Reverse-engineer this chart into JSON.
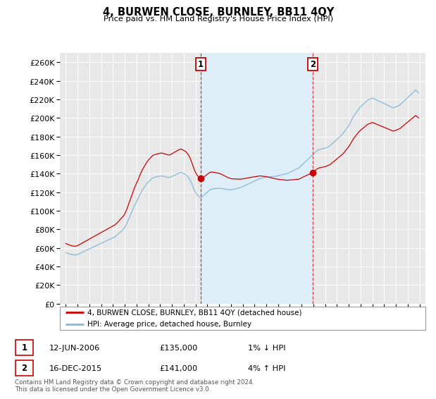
{
  "title": "4, BURWEN CLOSE, BURNLEY, BB11 4QY",
  "subtitle": "Price paid vs. HM Land Registry's House Price Index (HPI)",
  "hpi_color": "#85b9d9",
  "property_color": "#cc0000",
  "vline_color": "#cc0000",
  "shade_color": "#ddeef8",
  "background_color": "#e8e8e8",
  "grid_color": "#ffffff",
  "legend_border_color": "#aaaaaa",
  "transaction1": {
    "date_label": "12-JUN-2006",
    "price": 135000,
    "pct": "1%",
    "dir": "↓",
    "year": 2006.44
  },
  "transaction2": {
    "date_label": "16-DEC-2015",
    "price": 141000,
    "pct": "4%",
    "dir": "↑",
    "year": 2015.95
  },
  "footnote": "Contains HM Land Registry data © Crown copyright and database right 2024.\nThis data is licensed under the Open Government Licence v3.0.",
  "hpi_monthly": [
    55000,
    54500,
    54200,
    53800,
    53500,
    53200,
    53000,
    52800,
    52600,
    52400,
    52500,
    52700,
    53000,
    53500,
    54000,
    54500,
    55000,
    55500,
    56000,
    56500,
    57000,
    57500,
    58000,
    58500,
    59000,
    59500,
    60000,
    60500,
    61000,
    61500,
    62000,
    62500,
    63000,
    63500,
    64000,
    64500,
    65000,
    65500,
    66000,
    66500,
    67000,
    67500,
    68000,
    68500,
    69000,
    69500,
    70000,
    70500,
    71000,
    71500,
    72000,
    72800,
    73600,
    74500,
    75500,
    76500,
    77500,
    78500,
    79500,
    80500,
    82000,
    84000,
    86000,
    88500,
    91000,
    93500,
    96000,
    98500,
    101000,
    103500,
    106000,
    108000,
    110000,
    112000,
    114000,
    116500,
    118500,
    120500,
    122500,
    124000,
    125500,
    127000,
    128500,
    130000,
    131000,
    132000,
    133000,
    134000,
    135000,
    135500,
    136000,
    136200,
    136500,
    136800,
    137000,
    137200,
    137400,
    137600,
    137500,
    137300,
    137000,
    136800,
    136500,
    136200,
    136000,
    135800,
    136000,
    136500,
    137000,
    137500,
    138000,
    138500,
    139000,
    139500,
    140000,
    140500,
    141000,
    141200,
    141000,
    140500,
    140000,
    139500,
    139000,
    138000,
    137000,
    135500,
    134000,
    132000,
    129500,
    127000,
    124500,
    122000,
    120000,
    118500,
    117000,
    115800,
    115000,
    114500,
    114800,
    115500,
    116200,
    117000,
    118000,
    119000,
    120000,
    121000,
    122000,
    122800,
    123200,
    123500,
    123700,
    123800,
    123900,
    124000,
    124100,
    124200,
    124300,
    124200,
    124100,
    124000,
    123800,
    123600,
    123400,
    123200,
    123000,
    122900,
    122800,
    122700,
    122600,
    122800,
    123000,
    123200,
    123500,
    123800,
    124100,
    124300,
    124500,
    124800,
    125200,
    125600,
    126000,
    126500,
    127000,
    127500,
    128000,
    128500,
    129000,
    129500,
    130000,
    130500,
    131000,
    131500,
    132000,
    132500,
    133000,
    133500,
    134000,
    134500,
    135000,
    135200,
    135400,
    135600,
    135800,
    136000,
    136200,
    136400,
    136500,
    136600,
    136700,
    136800,
    136900,
    137000,
    137100,
    137200,
    137300,
    137500,
    137800,
    138000,
    138200,
    138500,
    138800,
    139000,
    139200,
    139500,
    139800,
    140000,
    140500,
    141000,
    141500,
    142000,
    142500,
    143000,
    143500,
    144000,
    144500,
    145000,
    145500,
    146000,
    147000,
    148000,
    149000,
    150000,
    151000,
    152000,
    153000,
    154000,
    155000,
    156000,
    157000,
    158000,
    159000,
    160000,
    161000,
    162000,
    163000,
    164000,
    165000,
    165500,
    166000,
    166200,
    166500,
    166800,
    167000,
    167200,
    167500,
    168000,
    168500,
    169000,
    169500,
    170000,
    171000,
    172000,
    173000,
    174000,
    175000,
    176000,
    177000,
    178000,
    179000,
    180000,
    181000,
    182000,
    183000,
    184500,
    186000,
    187500,
    189000,
    190500,
    192000,
    194000,
    196000,
    198000,
    200000,
    202000,
    203500,
    205000,
    206500,
    208000,
    209500,
    211000,
    212000,
    213000,
    214000,
    215000,
    216000,
    217000,
    218000,
    219000,
    219500,
    220000,
    220500,
    221000,
    221500,
    221000,
    220500,
    220000,
    219500,
    219000,
    218500,
    218000,
    217500,
    217000,
    216500,
    216000,
    215500,
    215000,
    214500,
    214000,
    213500,
    213000,
    212500,
    212000,
    211500,
    211000,
    211200,
    211500,
    212000,
    212500,
    213000,
    213500,
    214000,
    215000,
    216000,
    217000,
    218000,
    219000,
    220000,
    221000,
    222000,
    223000,
    224000,
    225000,
    226000,
    227000,
    228000,
    229000,
    230000,
    229000,
    228000,
    227000
  ],
  "start_year": 1995,
  "start_month": 1,
  "xlim_years": [
    1994.5,
    2025.5
  ],
  "ylim": [
    0,
    270000
  ],
  "ylabel_ticks": [
    0,
    20000,
    40000,
    60000,
    80000,
    100000,
    120000,
    140000,
    160000,
    180000,
    200000,
    220000,
    240000,
    260000
  ]
}
